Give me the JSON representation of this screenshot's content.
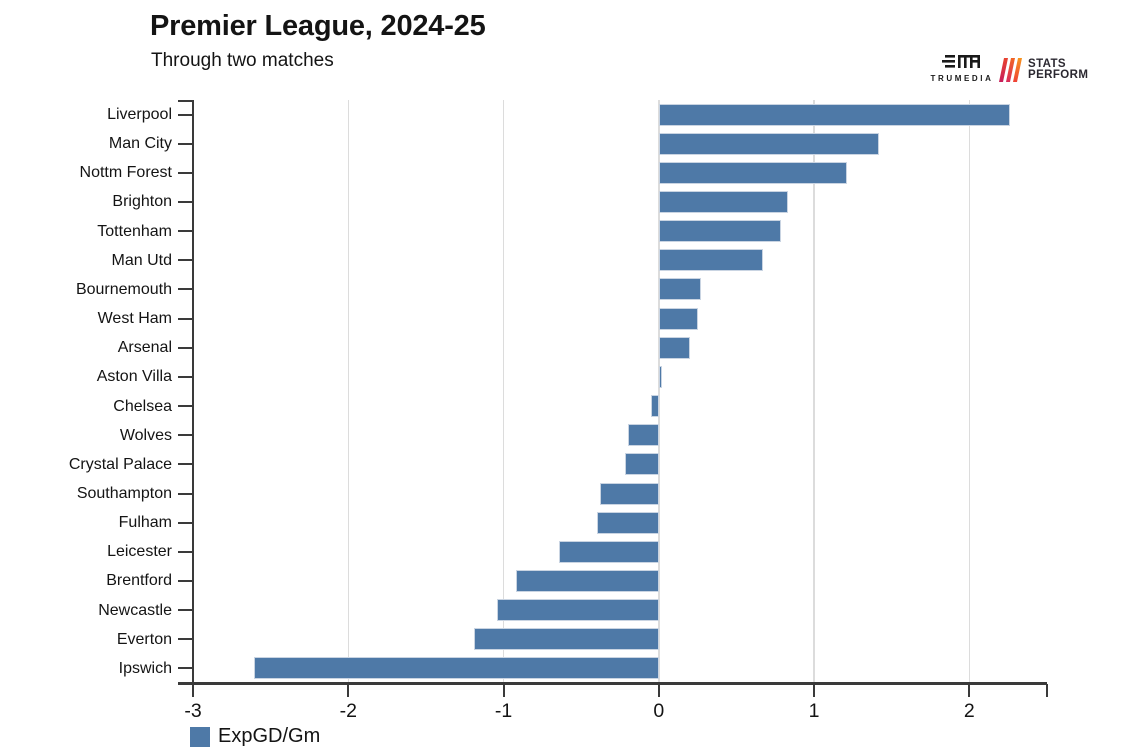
{
  "header": {
    "title": "Premier League, 2024-25",
    "subtitle": "Through two matches"
  },
  "branding": {
    "trumedia_label": "TRUMEDIA",
    "statsperform_line1": "STATS",
    "statsperform_line2": "PERFORM"
  },
  "chart_data": {
    "type": "bar",
    "orientation": "horizontal",
    "title": "Premier League, 2024-25",
    "subtitle": "Through two matches",
    "series_name": "ExpGD/Gm",
    "categories": [
      "Liverpool",
      "Man City",
      "Nottm Forest",
      "Brighton",
      "Tottenham",
      "Man Utd",
      "Bournemouth",
      "West Ham",
      "Arsenal",
      "Aston Villa",
      "Chelsea",
      "Wolves",
      "Crystal Palace",
      "Southampton",
      "Fulham",
      "Leicester",
      "Brentford",
      "Newcastle",
      "Everton",
      "Ipswich"
    ],
    "values": [
      2.26,
      1.42,
      1.21,
      0.83,
      0.79,
      0.67,
      0.27,
      0.25,
      0.2,
      0.02,
      -0.05,
      -0.2,
      -0.22,
      -0.38,
      -0.4,
      -0.64,
      -0.92,
      -1.04,
      -1.19,
      -2.61
    ],
    "xlabel": "",
    "ylabel": "",
    "xlim": [
      -3,
      2.5
    ],
    "x_ticks_labeled": [
      -3,
      -2,
      -1,
      0,
      1,
      2
    ],
    "x_ticks_unlabeled": [
      2.5
    ],
    "gridlines_at": [
      -2,
      -1,
      0,
      1,
      2
    ],
    "grid": "vertical",
    "legend_position": "bottom-left",
    "bar_color": "#4e79a7"
  },
  "legend": {
    "label": "ExpGD/Gm",
    "swatch_color": "#4e79a7"
  },
  "colors": {
    "bar": "#4e79a7",
    "bar_border": "#c9d4e2",
    "axis": "#3a3a3a",
    "grid": "#dcdcdc",
    "text": "#141414",
    "sp_red": "#d92b5a",
    "sp_orange": "#f7941d"
  }
}
